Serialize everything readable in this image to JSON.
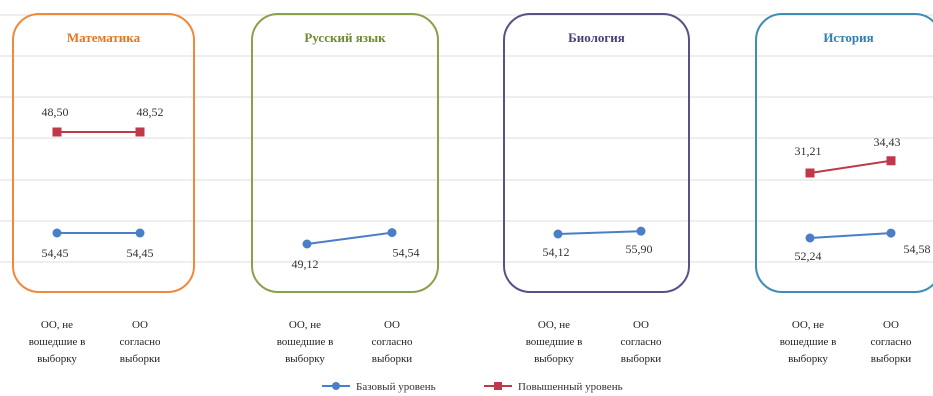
{
  "chart_data": [
    {
      "type": "line",
      "title": "Математика",
      "categories": [
        "ОО, не вошедшие в выборку",
        "ОО согласно выборки"
      ],
      "category_lines": [
        [
          "ОО, не",
          "вошедшие в",
          "выборку"
        ],
        [
          "ОО",
          "согласно",
          "выборки"
        ]
      ],
      "series": [
        {
          "name": "Базовый уровень",
          "values": [
            54.45,
            54.45
          ],
          "labels": [
            "54,45",
            "54,45"
          ]
        },
        {
          "name": "Повышенный уровень",
          "values": [
            48.5,
            48.52
          ],
          "labels": [
            "48,50",
            "48,52"
          ]
        }
      ],
      "frame_color": "#F0893B",
      "title_color": "#E8751A"
    },
    {
      "type": "line",
      "title": "Русский язык",
      "categories": [
        "ОО, не вошедшие в выборку",
        "ОО согласно выборки"
      ],
      "category_lines": [
        [
          "ОО, не",
          "вошедшие в",
          "выборку"
        ],
        [
          "ОО",
          "согласно",
          "выборки"
        ]
      ],
      "series": [
        {
          "name": "Базовый уровень",
          "values": [
            49.12,
            54.54
          ],
          "labels": [
            "49,12",
            "54,54"
          ]
        }
      ],
      "frame_color": "#8AA14B",
      "title_color": "#6E8A2E"
    },
    {
      "type": "line",
      "title": "Биология",
      "categories": [
        "ОО, не вошедшие в выборку",
        "ОО согласно выборки"
      ],
      "category_lines": [
        [
          "ОО, не",
          "вошедшие в",
          "выборку"
        ],
        [
          "ОО",
          "согласно",
          "выборки"
        ]
      ],
      "series": [
        {
          "name": "Базовый уровень",
          "values": [
            54.12,
            55.9
          ],
          "labels": [
            "54,12",
            "55,90"
          ]
        }
      ],
      "frame_color": "#5B4F8A",
      "title_color": "#4A3F7A"
    },
    {
      "type": "line",
      "title": "История",
      "categories": [
        "ОО, не вошедшие в выборку",
        "ОО согласно выборки"
      ],
      "category_lines": [
        [
          "ОО, не",
          "вошедшие в",
          "выборку"
        ],
        [
          "ОО",
          "согласно",
          "выборки"
        ]
      ],
      "series": [
        {
          "name": "Базовый уровень",
          "values": [
            52.24,
            54.58
          ],
          "labels": [
            "52,24",
            "54,58"
          ]
        },
        {
          "name": "Повышенный уровень",
          "values": [
            31.21,
            34.43
          ],
          "labels": [
            "31,21",
            "34,43"
          ]
        }
      ],
      "frame_color": "#3E8DB5",
      "title_color": "#2F7FB0"
    }
  ],
  "legend": {
    "position": "bottom",
    "items": [
      {
        "name": "Базовый уровень",
        "color": "#4A7EC7",
        "marker": "circle"
      },
      {
        "name": "Повышенный уровень",
        "color": "#C0394B",
        "marker": "square"
      }
    ]
  },
  "gridlines": true
}
